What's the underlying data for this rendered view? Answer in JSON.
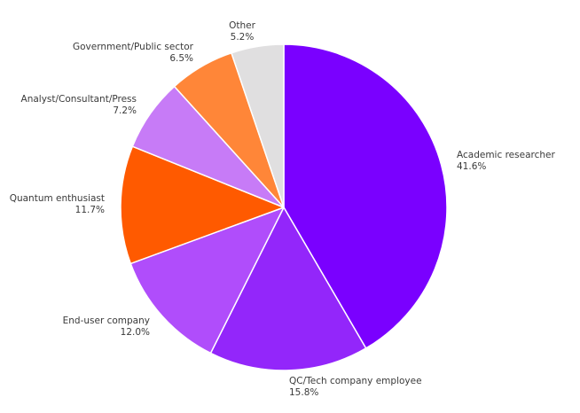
{
  "chart_data": {
    "type": "pie",
    "title": "",
    "start_angle_deg": 90,
    "direction": "clockwise",
    "categories": [
      "Academic researcher",
      "QC/Tech company employee",
      "End-user company",
      "Quantum enthusiast",
      "Analyst/Consultant/Press",
      "Government/Public sector",
      "Other"
    ],
    "values": [
      41.6,
      15.8,
      12.0,
      11.7,
      7.2,
      6.5,
      5.2
    ],
    "value_labels": [
      "41.6%",
      "15.8%",
      "12.0%",
      "11.7%",
      "7.2%",
      "6.5%",
      "5.2%"
    ],
    "colors": [
      "#7a00ff",
      "#9326fa",
      "#b04dfb",
      "#ff5a00",
      "#c77bf7",
      "#ff8638",
      "#e0dfe0"
    ],
    "legend": "none",
    "wedge_edge_color": "#ffffff"
  },
  "labels": [
    {
      "name": "Academic researcher",
      "pct": "41.6%"
    },
    {
      "name": "QC/Tech company employee",
      "pct": "15.8%"
    },
    {
      "name": "End-user company",
      "pct": "12.0%"
    },
    {
      "name": "Quantum enthusiast",
      "pct": "11.7%"
    },
    {
      "name": "Analyst/Consultant/Press",
      "pct": "7.2%"
    },
    {
      "name": "Government/Public sector",
      "pct": "6.5%"
    },
    {
      "name": "Other",
      "pct": "5.2%"
    }
  ]
}
